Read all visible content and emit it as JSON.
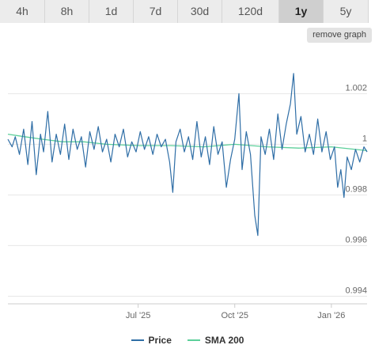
{
  "tabs": [
    {
      "label": "4h",
      "active": false
    },
    {
      "label": "8h",
      "active": false
    },
    {
      "label": "1d",
      "active": false
    },
    {
      "label": "7d",
      "active": false
    },
    {
      "label": "30d",
      "active": false
    },
    {
      "label": "120d",
      "active": false
    },
    {
      "label": "1y",
      "active": true
    },
    {
      "label": "5y",
      "active": false
    }
  ],
  "remove_label": "remove graph",
  "colors": {
    "price": "#2f6ea6",
    "sma": "#5ccf9a",
    "grid": "#e6e6e6"
  },
  "chart_data": {
    "type": "line",
    "title": "",
    "xlabel": "",
    "ylabel": "",
    "ylim": [
      0.9937,
      1.0037
    ],
    "y_ticks": [
      {
        "value": 1.002,
        "label": "1.002"
      },
      {
        "value": 1.0,
        "label": "1"
      },
      {
        "value": 0.998,
        "label": "0.998"
      },
      {
        "value": 0.996,
        "label": "0.996"
      },
      {
        "value": 0.994,
        "label": "0.994"
      }
    ],
    "x_ticks": [
      {
        "date": "2025-07-01",
        "label": "Jul '25"
      },
      {
        "date": "2025-10-01",
        "label": "Oct '25"
      },
      {
        "date": "2026-01-01",
        "label": "Jan '26"
      }
    ],
    "x_range": [
      "2025-02-27",
      "2026-02-04"
    ],
    "grid": true,
    "legend": "bottom",
    "series": [
      {
        "name": "Price",
        "key": "price",
        "points": [
          [
            "2025-02-27",
            1.0002
          ],
          [
            "2025-03-03",
            0.9999
          ],
          [
            "2025-03-06",
            1.0003
          ],
          [
            "2025-03-10",
            0.9996
          ],
          [
            "2025-03-14",
            1.0006
          ],
          [
            "2025-03-18",
            0.9992
          ],
          [
            "2025-03-22",
            1.0009
          ],
          [
            "2025-03-26",
            0.9988
          ],
          [
            "2025-03-30",
            1.0004
          ],
          [
            "2025-04-02",
            0.9997
          ],
          [
            "2025-04-06",
            1.0013
          ],
          [
            "2025-04-10",
            0.9993
          ],
          [
            "2025-04-14",
            1.0004
          ],
          [
            "2025-04-18",
            0.9996
          ],
          [
            "2025-04-22",
            1.0008
          ],
          [
            "2025-04-26",
            0.9994
          ],
          [
            "2025-04-30",
            1.0006
          ],
          [
            "2025-05-04",
            0.9998
          ],
          [
            "2025-05-08",
            1.0003
          ],
          [
            "2025-05-12",
            0.9991
          ],
          [
            "2025-05-16",
            1.0005
          ],
          [
            "2025-05-20",
            0.9998
          ],
          [
            "2025-05-24",
            1.0007
          ],
          [
            "2025-05-28",
            0.9997
          ],
          [
            "2025-06-01",
            1.0002
          ],
          [
            "2025-06-05",
            0.9993
          ],
          [
            "2025-06-09",
            1.0004
          ],
          [
            "2025-06-13",
            0.9999
          ],
          [
            "2025-06-17",
            1.0006
          ],
          [
            "2025-06-21",
            0.9995
          ],
          [
            "2025-06-25",
            1.0001
          ],
          [
            "2025-06-29",
            0.9997
          ],
          [
            "2025-07-03",
            1.0005
          ],
          [
            "2025-07-07",
            0.9998
          ],
          [
            "2025-07-11",
            1.0003
          ],
          [
            "2025-07-15",
            0.9996
          ],
          [
            "2025-07-19",
            1.0004
          ],
          [
            "2025-07-23",
            0.9999
          ],
          [
            "2025-07-27",
            1.0002
          ],
          [
            "2025-07-31",
            0.9993
          ],
          [
            "2025-08-03",
            0.9981
          ],
          [
            "2025-08-06",
            1.0001
          ],
          [
            "2025-08-10",
            1.0006
          ],
          [
            "2025-08-14",
            0.9997
          ],
          [
            "2025-08-18",
            1.0003
          ],
          [
            "2025-08-22",
            0.9994
          ],
          [
            "2025-08-26",
            1.0009
          ],
          [
            "2025-08-30",
            0.9995
          ],
          [
            "2025-09-03",
            1.0003
          ],
          [
            "2025-09-07",
            0.9992
          ],
          [
            "2025-09-11",
            1.0007
          ],
          [
            "2025-09-15",
            0.9996
          ],
          [
            "2025-09-19",
            1.0001
          ],
          [
            "2025-09-23",
            0.9983
          ],
          [
            "2025-09-27",
            0.9994
          ],
          [
            "2025-10-01",
            1.0002
          ],
          [
            "2025-10-05",
            1.002
          ],
          [
            "2025-10-08",
            0.999
          ],
          [
            "2025-10-12",
            1.0005
          ],
          [
            "2025-10-16",
            0.9996
          ],
          [
            "2025-10-20",
            0.9972
          ],
          [
            "2025-10-23",
            0.9964
          ],
          [
            "2025-10-26",
            1.0003
          ],
          [
            "2025-10-30",
            0.9996
          ],
          [
            "2025-11-03",
            1.0006
          ],
          [
            "2025-11-07",
            0.9994
          ],
          [
            "2025-11-11",
            1.0012
          ],
          [
            "2025-11-15",
            0.9998
          ],
          [
            "2025-11-19",
            1.0008
          ],
          [
            "2025-11-23",
            1.0016
          ],
          [
            "2025-11-26",
            1.0028
          ],
          [
            "2025-11-29",
            1.0004
          ],
          [
            "2025-12-03",
            1.0011
          ],
          [
            "2025-12-07",
            0.9997
          ],
          [
            "2025-12-11",
            1.0004
          ],
          [
            "2025-12-15",
            0.9996
          ],
          [
            "2025-12-19",
            1.001
          ],
          [
            "2025-12-23",
            0.9997
          ],
          [
            "2025-12-27",
            1.0005
          ],
          [
            "2025-12-31",
            0.9994
          ],
          [
            "2026-01-04",
            0.9999
          ],
          [
            "2026-01-07",
            0.9983
          ],
          [
            "2026-01-10",
            0.999
          ],
          [
            "2026-01-13",
            0.9979
          ],
          [
            "2026-01-16",
            0.9995
          ],
          [
            "2026-01-20",
            0.999
          ],
          [
            "2026-01-24",
            0.9998
          ],
          [
            "2026-01-28",
            0.9993
          ],
          [
            "2026-02-01",
            0.9999
          ],
          [
            "2026-02-04",
            0.9997
          ]
        ]
      },
      {
        "name": "SMA 200",
        "key": "sma",
        "points": [
          [
            "2025-02-27",
            1.0004
          ],
          [
            "2025-03-15",
            1.0003
          ],
          [
            "2025-04-01",
            1.0002
          ],
          [
            "2025-04-20",
            1.0001
          ],
          [
            "2025-05-10",
            1.0001
          ],
          [
            "2025-06-01",
            1.0
          ],
          [
            "2025-07-01",
            0.99995
          ],
          [
            "2025-08-01",
            0.99995
          ],
          [
            "2025-09-01",
            0.9999
          ],
          [
            "2025-10-01",
            1.0
          ],
          [
            "2025-11-01",
            0.9999
          ],
          [
            "2025-12-01",
            0.99985
          ],
          [
            "2026-01-01",
            0.9999
          ],
          [
            "2026-02-04",
            0.99975
          ]
        ]
      }
    ]
  }
}
